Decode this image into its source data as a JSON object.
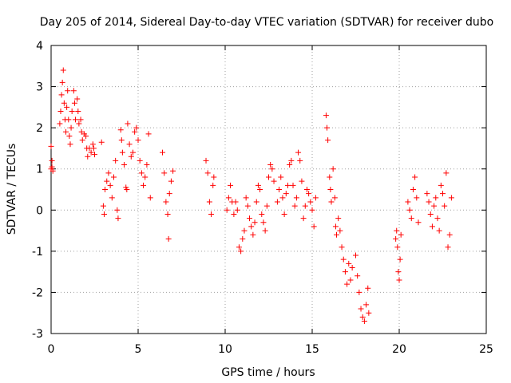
{
  "chart_data": {
    "type": "scatter",
    "title": "Day 205 of 2014, Sidereal Day-to-day VTEC variation (SDTVAR) for receiver dubo",
    "xlabel": "GPS time / hours",
    "ylabel": "SDTVAR / TECUs",
    "xlim": [
      0,
      25
    ],
    "ylim": [
      -3,
      4
    ],
    "xticks": [
      "0",
      "5",
      "10",
      "15",
      "20",
      "25"
    ],
    "yticks": [
      "-3",
      "-2",
      "-1",
      "0",
      "1",
      "2",
      "3",
      "4"
    ],
    "grid": true,
    "marker": "+",
    "color": "#ff0000",
    "series": [
      {
        "name": "SDTVAR",
        "points": [
          [
            0.0,
            1.55
          ],
          [
            0.0,
            1.0
          ],
          [
            0.05,
            1.05
          ],
          [
            0.05,
            1.2
          ],
          [
            0.1,
            0.95
          ],
          [
            0.5,
            2.1
          ],
          [
            0.55,
            2.4
          ],
          [
            0.6,
            2.8
          ],
          [
            0.65,
            3.1
          ],
          [
            0.7,
            3.4
          ],
          [
            0.75,
            2.6
          ],
          [
            0.8,
            2.2
          ],
          [
            0.85,
            1.9
          ],
          [
            0.9,
            2.5
          ],
          [
            0.95,
            2.9
          ],
          [
            1.0,
            2.2
          ],
          [
            1.05,
            1.8
          ],
          [
            1.1,
            1.6
          ],
          [
            1.15,
            2.0
          ],
          [
            1.2,
            2.4
          ],
          [
            1.3,
            2.9
          ],
          [
            1.35,
            2.6
          ],
          [
            1.4,
            2.2
          ],
          [
            1.5,
            2.7
          ],
          [
            1.55,
            2.4
          ],
          [
            1.6,
            2.1
          ],
          [
            1.7,
            2.2
          ],
          [
            1.75,
            1.9
          ],
          [
            1.8,
            1.7
          ],
          [
            1.9,
            1.85
          ],
          [
            2.0,
            1.8
          ],
          [
            2.05,
            1.5
          ],
          [
            2.1,
            1.3
          ],
          [
            2.2,
            1.5
          ],
          [
            2.3,
            1.4
          ],
          [
            2.4,
            1.6
          ],
          [
            2.45,
            1.5
          ],
          [
            2.5,
            1.35
          ],
          [
            2.9,
            1.65
          ],
          [
            3.0,
            0.1
          ],
          [
            3.05,
            -0.1
          ],
          [
            3.1,
            0.5
          ],
          [
            3.2,
            0.7
          ],
          [
            3.3,
            0.9
          ],
          [
            3.4,
            0.6
          ],
          [
            3.5,
            0.3
          ],
          [
            3.6,
            0.8
          ],
          [
            3.7,
            1.2
          ],
          [
            3.8,
            0.0
          ],
          [
            3.85,
            -0.2
          ],
          [
            4.0,
            1.95
          ],
          [
            4.05,
            1.7
          ],
          [
            4.1,
            1.4
          ],
          [
            4.2,
            1.1
          ],
          [
            4.3,
            0.55
          ],
          [
            4.35,
            0.5
          ],
          [
            4.4,
            2.1
          ],
          [
            4.5,
            1.6
          ],
          [
            4.6,
            1.3
          ],
          [
            4.7,
            1.4
          ],
          [
            4.8,
            1.9
          ],
          [
            4.9,
            2.0
          ],
          [
            5.0,
            1.7
          ],
          [
            5.1,
            1.2
          ],
          [
            5.2,
            0.9
          ],
          [
            5.3,
            0.6
          ],
          [
            5.4,
            0.8
          ],
          [
            5.5,
            1.1
          ],
          [
            5.6,
            1.85
          ],
          [
            5.7,
            0.3
          ],
          [
            6.4,
            1.4
          ],
          [
            6.5,
            0.9
          ],
          [
            6.6,
            0.2
          ],
          [
            6.7,
            -0.1
          ],
          [
            6.75,
            -0.7
          ],
          [
            6.8,
            0.4
          ],
          [
            6.9,
            0.7
          ],
          [
            7.0,
            0.95
          ],
          [
            8.9,
            1.2
          ],
          [
            9.0,
            0.9
          ],
          [
            9.1,
            0.2
          ],
          [
            9.2,
            -0.1
          ],
          [
            9.3,
            0.6
          ],
          [
            9.35,
            0.8
          ],
          [
            10.1,
            0.0
          ],
          [
            10.2,
            0.3
          ],
          [
            10.3,
            0.6
          ],
          [
            10.4,
            0.2
          ],
          [
            10.5,
            -0.1
          ],
          [
            10.6,
            0.2
          ],
          [
            10.7,
            0.0
          ],
          [
            10.8,
            -0.9
          ],
          [
            10.9,
            -1.0
          ],
          [
            11.0,
            -0.7
          ],
          [
            11.1,
            -0.5
          ],
          [
            11.2,
            0.3
          ],
          [
            11.3,
            0.1
          ],
          [
            11.4,
            -0.2
          ],
          [
            11.5,
            -0.4
          ],
          [
            11.6,
            -0.6
          ],
          [
            11.7,
            -0.3
          ],
          [
            11.8,
            0.2
          ],
          [
            11.9,
            0.6
          ],
          [
            12.0,
            0.5
          ],
          [
            12.1,
            -0.1
          ],
          [
            12.2,
            -0.3
          ],
          [
            12.3,
            -0.5
          ],
          [
            12.4,
            0.1
          ],
          [
            12.5,
            0.8
          ],
          [
            12.6,
            1.1
          ],
          [
            12.7,
            1.0
          ],
          [
            12.8,
            0.7
          ],
          [
            13.0,
            0.2
          ],
          [
            13.1,
            0.5
          ],
          [
            13.2,
            0.8
          ],
          [
            13.3,
            0.3
          ],
          [
            13.4,
            -0.1
          ],
          [
            13.5,
            0.4
          ],
          [
            13.6,
            0.6
          ],
          [
            13.7,
            1.1
          ],
          [
            13.8,
            1.2
          ],
          [
            13.9,
            0.6
          ],
          [
            14.0,
            0.1
          ],
          [
            14.1,
            0.3
          ],
          [
            14.2,
            1.4
          ],
          [
            14.3,
            1.2
          ],
          [
            14.4,
            0.7
          ],
          [
            14.5,
            -0.2
          ],
          [
            14.6,
            0.1
          ],
          [
            14.7,
            0.5
          ],
          [
            14.8,
            0.4
          ],
          [
            14.9,
            0.2
          ],
          [
            15.0,
            0.0
          ],
          [
            15.1,
            -0.4
          ],
          [
            15.2,
            0.3
          ],
          [
            15.8,
            2.3
          ],
          [
            15.85,
            2.0
          ],
          [
            15.9,
            1.7
          ],
          [
            16.0,
            0.8
          ],
          [
            16.05,
            0.5
          ],
          [
            16.1,
            0.2
          ],
          [
            16.2,
            1.0
          ],
          [
            16.3,
            0.3
          ],
          [
            16.35,
            -0.4
          ],
          [
            16.4,
            -0.6
          ],
          [
            16.5,
            -0.2
          ],
          [
            16.6,
            -0.5
          ],
          [
            16.7,
            -0.9
          ],
          [
            16.8,
            -1.2
          ],
          [
            16.9,
            -1.5
          ],
          [
            17.0,
            -1.8
          ],
          [
            17.1,
            -1.3
          ],
          [
            17.2,
            -1.7
          ],
          [
            17.3,
            -1.4
          ],
          [
            17.5,
            -1.1
          ],
          [
            17.6,
            -1.6
          ],
          [
            17.7,
            -2.0
          ],
          [
            17.8,
            -2.4
          ],
          [
            17.9,
            -2.6
          ],
          [
            18.0,
            -2.7
          ],
          [
            18.1,
            -2.3
          ],
          [
            18.2,
            -1.9
          ],
          [
            18.25,
            -2.5
          ],
          [
            19.8,
            -0.7
          ],
          [
            19.85,
            -0.5
          ],
          [
            19.9,
            -0.9
          ],
          [
            19.95,
            -1.5
          ],
          [
            20.0,
            -1.7
          ],
          [
            20.05,
            -1.2
          ],
          [
            20.1,
            -0.6
          ],
          [
            20.5,
            0.2
          ],
          [
            20.6,
            0.0
          ],
          [
            20.7,
            -0.2
          ],
          [
            20.8,
            0.5
          ],
          [
            20.9,
            0.8
          ],
          [
            21.0,
            0.3
          ],
          [
            21.1,
            -0.3
          ],
          [
            21.6,
            0.4
          ],
          [
            21.7,
            0.2
          ],
          [
            21.8,
            -0.1
          ],
          [
            21.9,
            -0.4
          ],
          [
            22.0,
            0.1
          ],
          [
            22.1,
            0.3
          ],
          [
            22.2,
            -0.2
          ],
          [
            22.3,
            -0.5
          ],
          [
            22.4,
            0.6
          ],
          [
            22.5,
            0.4
          ],
          [
            22.6,
            0.1
          ],
          [
            22.7,
            0.9
          ],
          [
            22.8,
            -0.9
          ],
          [
            22.9,
            -0.6
          ],
          [
            23.0,
            0.3
          ]
        ]
      }
    ]
  }
}
